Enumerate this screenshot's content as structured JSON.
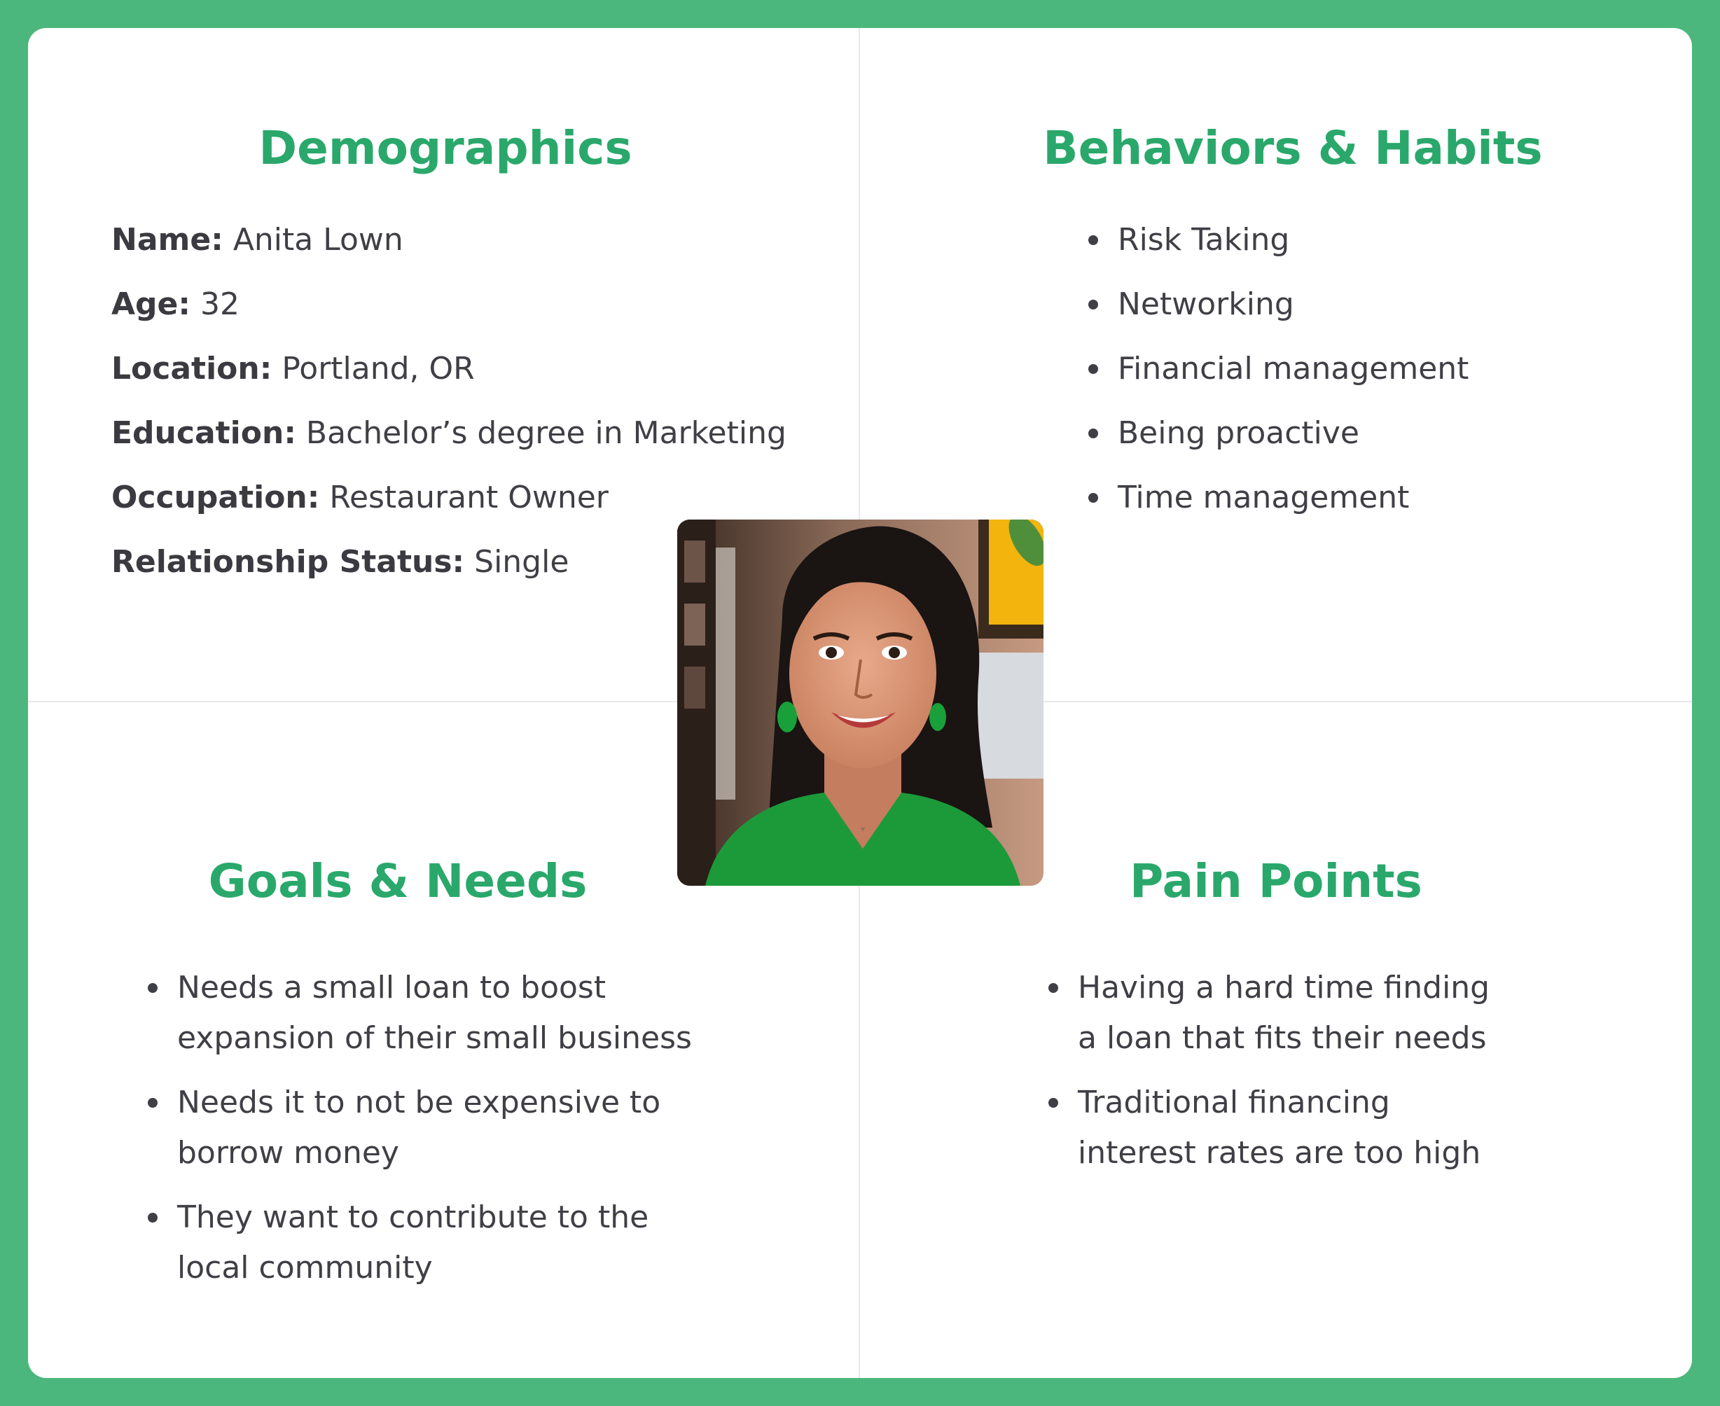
{
  "persona": {
    "demographics": {
      "title": "Demographics",
      "fields": [
        {
          "label": "Name:",
          "value": "Anita Lown"
        },
        {
          "label": "Age:",
          "value": "32"
        },
        {
          "label": "Location:",
          "value": "Portland, OR"
        },
        {
          "label": "Education:",
          "value": "Bachelor’s degree in Marketing"
        },
        {
          "label": "Occupation:",
          "value": "Restaurant Owner"
        },
        {
          "label": "Relationship Status:",
          "value": "Single"
        }
      ]
    },
    "behaviors": {
      "title": "Behaviors & Habits",
      "items": [
        "Risk Taking",
        "Networking",
        "Financial management",
        "Being proactive",
        "Time management"
      ]
    },
    "goals": {
      "title": "Goals & Needs",
      "items": [
        {
          "line1": "Needs a small loan to boost",
          "line2": "expansion of their small business"
        },
        {
          "line1": "Needs it to not be expensive to",
          "line2": "borrow money"
        },
        {
          "line1": "They want to contribute to the",
          "line2": "local community"
        }
      ]
    },
    "pain_points": {
      "title": "Pain Points",
      "items": [
        {
          "line1": "Having a hard time finding",
          "line2": "a loan that fits their needs"
        },
        {
          "line1": "Traditional financing",
          "line2": "interest rates are too high"
        }
      ]
    }
  },
  "colors": {
    "border_green": "#4cb77c",
    "heading_green": "#2aa86b",
    "text": "#3f3f46",
    "divider": "#e7e9ec"
  }
}
